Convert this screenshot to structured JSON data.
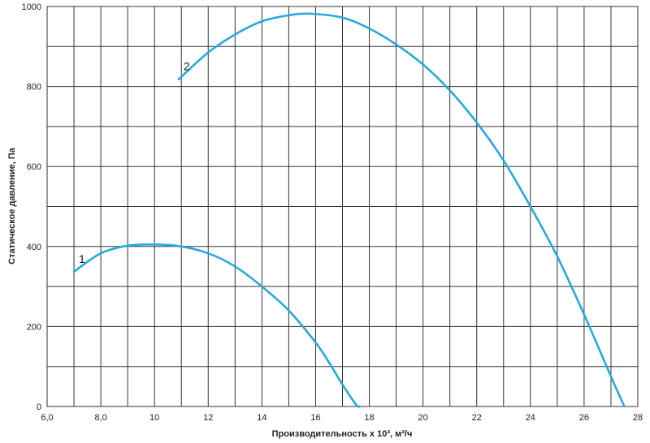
{
  "chart_data": {
    "type": "line",
    "xlabel": "Производительность x 10³, м³/ч",
    "ylabel": "Статическое давление, Па",
    "xlim": [
      6,
      28
    ],
    "ylim": [
      0,
      1000
    ],
    "x_ticks": [
      6,
      8,
      10,
      12,
      14,
      16,
      18,
      20,
      22,
      24,
      26,
      28
    ],
    "x_tick_labels": [
      "6,0",
      "8,0",
      "10",
      "12",
      "14",
      "16",
      "18",
      "20",
      "22",
      "24",
      "26",
      "28"
    ],
    "x_minor_grid_step": 1,
    "y_ticks": [
      0,
      200,
      400,
      600,
      800,
      1000
    ],
    "y_tick_labels": [
      "0",
      "200",
      "400",
      "600",
      "800",
      "1000"
    ],
    "y_minor_grid_step": 100,
    "grid": true,
    "line_color": "#29a8de",
    "series": [
      {
        "name": "1",
        "x": [
          7.0,
          8.0,
          9.0,
          10.0,
          11.0,
          12.0,
          13.0,
          14.0,
          15.0,
          16.0,
          16.5,
          17.0,
          17.5,
          17.65
        ],
        "y": [
          337,
          383,
          402,
          405,
          400,
          383,
          350,
          300,
          240,
          160,
          110,
          55,
          5,
          0
        ]
      },
      {
        "name": "2",
        "x": [
          10.9,
          12.0,
          13.0,
          14.0,
          15.0,
          15.8,
          17.0,
          18.0,
          19.0,
          20.0,
          21.0,
          22.0,
          23.0,
          24.0,
          25.0,
          26.0,
          27.0,
          27.5
        ],
        "y": [
          818,
          885,
          930,
          963,
          978,
          982,
          972,
          945,
          905,
          855,
          790,
          710,
          615,
          500,
          375,
          230,
          75,
          0
        ]
      }
    ]
  }
}
